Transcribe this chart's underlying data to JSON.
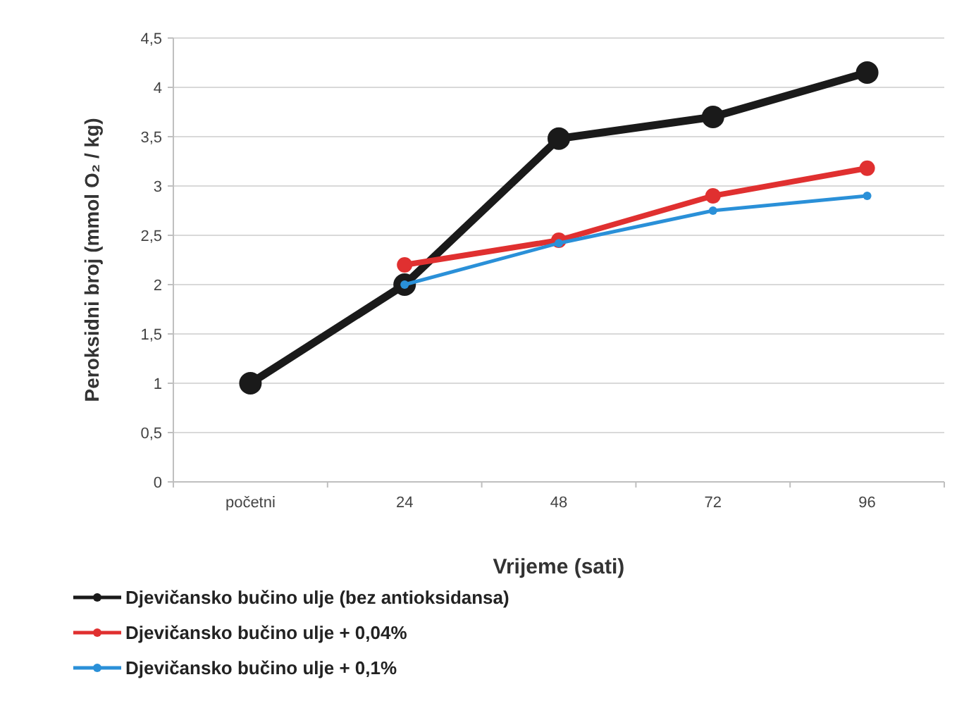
{
  "chart_data": {
    "type": "line",
    "xlabel": "Vrijeme (sati)",
    "ylabel": "Peroksidni broj (mmol O₂ / kg)",
    "categories": [
      "početni",
      "24",
      "48",
      "72",
      "96"
    ],
    "ylim": [
      0,
      4.5
    ],
    "yticks": [
      0,
      {
        "value": 0.5,
        "label": "0,5"
      },
      1,
      {
        "value": 1.5,
        "label": "1,5"
      },
      2,
      {
        "value": 2.5,
        "label": "2,5"
      },
      3,
      {
        "value": 3.5,
        "label": "3,5"
      },
      4,
      {
        "value": 4.5,
        "label": "4,5"
      }
    ],
    "grid": "y",
    "legend": "bottom",
    "marker": "circle",
    "line_style": "solid",
    "series": [
      {
        "name": "Djevičansko bučino ulje (bez antioksidansa)",
        "color": "#1a1a1a",
        "values": [
          1,
          2,
          3.48,
          3.7,
          4.15
        ]
      },
      {
        "name": "Djevičansko bučino ulje + 0,04%",
        "color": "#e03030",
        "values": [
          null,
          2.2,
          2.45,
          2.9,
          3.18
        ]
      },
      {
        "name": "Djevičansko bučino ulje + 0,1%",
        "color": "#2a90d8",
        "values": [
          null,
          2,
          2.42,
          2.75,
          2.9
        ]
      }
    ]
  }
}
